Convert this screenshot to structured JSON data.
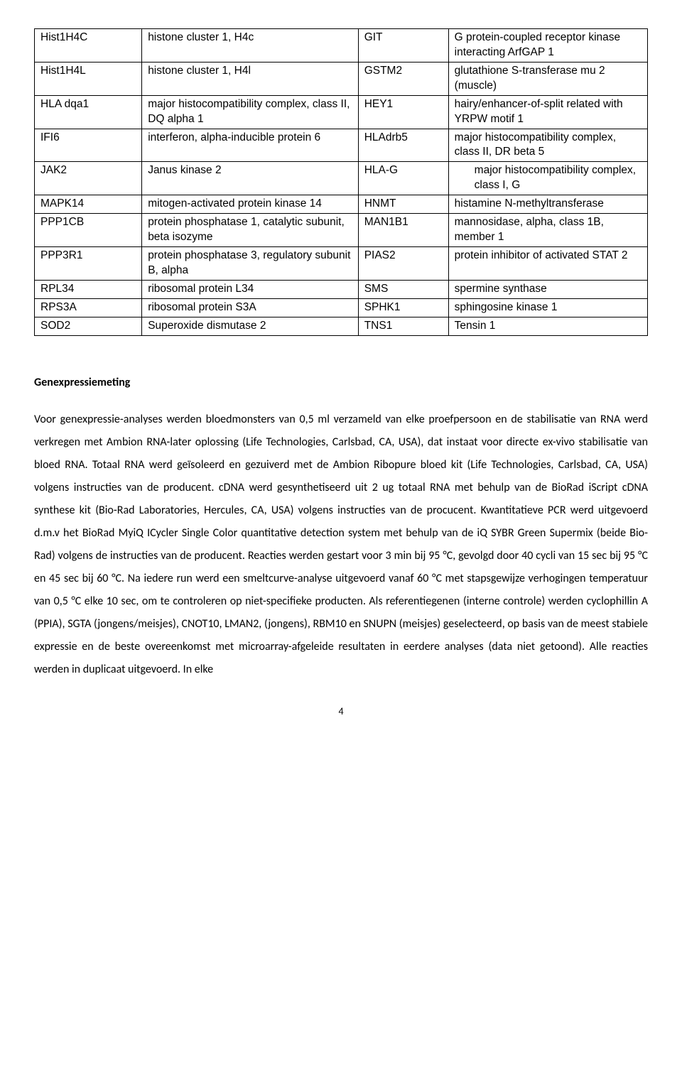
{
  "table": {
    "rows": [
      {
        "c1": "Hist1H4C",
        "c2": "histone cluster 1, H4c",
        "c3": "GIT",
        "c4": "G protein-coupled receptor kinase interacting ArfGAP 1",
        "indent": false
      },
      {
        "c1": "Hist1H4L",
        "c2": "histone cluster 1, H4l",
        "c3": "GSTM2",
        "c4": "glutathione S-transferase mu 2 (muscle)",
        "indent": false
      },
      {
        "c1": "HLA dqa1",
        "c2": "major histocompatibility complex, class II, DQ alpha 1",
        "c3": "HEY1",
        "c4": "hairy/enhancer-of-split related with YRPW motif 1",
        "indent": false
      },
      {
        "c1": "IFI6",
        "c2": "interferon, alpha-inducible protein 6",
        "c3": "HLAdrb5",
        "c4": "major histocompatibility complex, class II, DR beta 5",
        "indent": false
      },
      {
        "c1": "JAK2",
        "c2": "Janus kinase 2",
        "c3": "HLA-G",
        "c4": "major histocompatibility complex, class I, G",
        "indent": true
      },
      {
        "c1": "MAPK14",
        "c2": "mitogen-activated protein kinase 14",
        "c3": "HNMT",
        "c4": "histamine N-methyltransferase",
        "indent": false
      },
      {
        "c1": "PPP1CB",
        "c2": "protein phosphatase 1, catalytic subunit, beta isozyme",
        "c3": "MAN1B1",
        "c4": "mannosidase, alpha, class 1B, member 1",
        "indent": false
      },
      {
        "c1": "PPP3R1",
        "c2": "protein phosphatase 3, regulatory subunit B, alpha",
        "c3": "PIAS2",
        "c4": "protein inhibitor of activated STAT 2",
        "indent": false
      },
      {
        "c1": "RPL34",
        "c2": "ribosomal protein L34",
        "c3": "SMS",
        "c4": "spermine synthase",
        "indent": false
      },
      {
        "c1": "RPS3A",
        "c2": "ribosomal protein S3A",
        "c3": "SPHK1",
        "c4": "sphingosine kinase 1",
        "indent": false
      },
      {
        "c1": "SOD2",
        "c2": "Superoxide dismutase 2",
        "c3": "TNS1",
        "c4": "Tensin 1",
        "indent": false
      }
    ]
  },
  "heading": "Genexpressiemeting",
  "body": "Voor genexpressie-analyses werden bloedmonsters van 0,5 ml verzameld van elke proefpersoon en de stabilisatie van RNA werd verkregen met Ambion RNA-later oplossing (Life Technologies, Carlsbad, CA, USA), dat instaat voor directe ex-vivo stabilisatie van bloed RNA. Totaal RNA werd geïsoleerd en gezuiverd met de Ambion Ribopure bloed kit (Life Technologies, Carlsbad, CA, USA) volgens instructies van de producent. cDNA werd gesynthetiseerd uit 2 ug totaal RNA met behulp van de BioRad iScript cDNA synthese kit (Bio-Rad Laboratories, Hercules, CA, USA) volgens instructies van de procucent. Kwantitatieve PCR werd uitgevoerd d.m.v het BioRad MyiQ ICycler Single Color quantitative detection system met behulp van de iQ SYBR Green Supermix (beide Bio-Rad) volgens de instructies van de producent. Reacties werden gestart voor 3 min bij 95 °C, gevolgd door 40 cycli van 15 sec bij 95 °C en 45 sec bij 60 °C. Na iedere run werd een smeltcurve-analyse uitgevoerd vanaf 60 °C met stapsgewijze verhogingen temperatuur van 0,5 °C elke 10 sec, om te controleren op niet-specifieke producten. Als referentiegenen (interne controle) werden cyclophillin A (PPIA), SGTA (jongens/meisjes), CNOT10, LMAN2, (jongens), RBM10 en SNUPN (meisjes) geselecteerd, op basis van de meest stabiele expressie en de beste overeenkomst met microarray-afgeleide resultaten in eerdere analyses (data niet getoond). Alle reacties werden in duplicaat uitgevoerd. In elke",
  "page_number": "4"
}
